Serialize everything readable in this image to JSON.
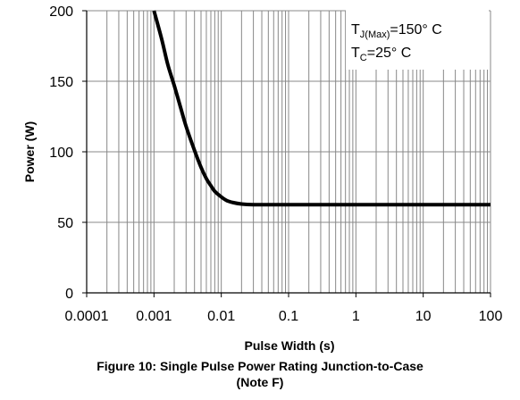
{
  "chart_data": {
    "type": "line",
    "title": "",
    "xlabel": "Pulse Width (s)",
    "ylabel": "Power (W)",
    "xscale": "log",
    "xlim": [
      0.0001,
      100
    ],
    "ylim": [
      0,
      200
    ],
    "x_ticks": [
      "0.0001",
      "0.001",
      "0.01",
      "0.1",
      "1",
      "10",
      "100"
    ],
    "y_ticks": [
      "0",
      "50",
      "100",
      "150",
      "200"
    ],
    "grid": true,
    "series": [
      {
        "x": [
          0.001,
          0.0013,
          0.0016,
          0.002,
          0.0025,
          0.003,
          0.004,
          0.005,
          0.006,
          0.007,
          0.008,
          0.01,
          0.012,
          0.015,
          0.02,
          0.03,
          0.05,
          0.1,
          1,
          10,
          100
        ],
        "y": [
          200,
          180,
          162,
          147,
          131,
          118,
          101,
          89,
          81,
          76,
          72,
          68,
          65.5,
          64,
          63,
          62.5,
          62.5,
          62.5,
          62.5,
          62.5,
          62.5
        ],
        "color": "#000000"
      }
    ],
    "annotation": {
      "line1": {
        "main": "T",
        "sub": "J(Max)",
        "rest": "=150° C"
      },
      "line2": {
        "main": "T",
        "sub": "C",
        "rest": "=25° C"
      }
    }
  },
  "caption": {
    "line1": "Figure 10: Single Pulse Power Rating Junction-to-Case",
    "line2": "(Note F)"
  }
}
